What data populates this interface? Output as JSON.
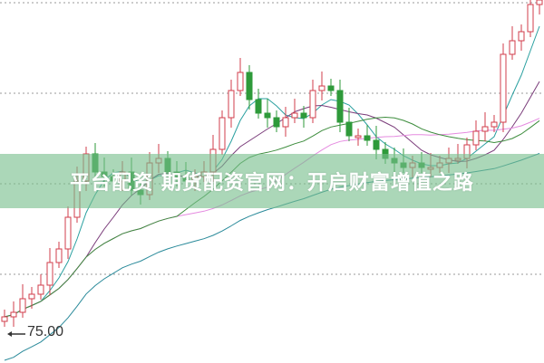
{
  "banner": {
    "text": "平台配资 期货配资官网：开启财富增值之路"
  },
  "chart_data": {
    "type": "candlestick",
    "annotation": "75.00",
    "grid": true,
    "up_color": "#d23c4b",
    "down_color": "#2e9a3a",
    "ma_colors": [
      "#2aa0a0",
      "#7a3c7a",
      "#e58be0",
      "#3c8c3c",
      "#2a8a9a"
    ],
    "closes": [
      76.8,
      77.3,
      78.8,
      79.3,
      80.3,
      82.8,
      84.3,
      87.8,
      91.8,
      94.8,
      92.8,
      92.3,
      91.8,
      92.8,
      90.8,
      90.3,
      93.8,
      94.3,
      92.8,
      92.3,
      91.8,
      92.3,
      92.8,
      95.3,
      98.8,
      101.8,
      103.8,
      100.8,
      99.3,
      98.8,
      97.8,
      98.8,
      99.3,
      98.8,
      101.8,
      102.3,
      101.8,
      98.3,
      96.8,
      96.8,
      96.3,
      95.3,
      94.3,
      93.8,
      93.3,
      93.8,
      93.3,
      93.3,
      93.8,
      94.3,
      94.3,
      95.8,
      97.3,
      97.8,
      98.3,
      105.8,
      107.3,
      108.3,
      111.3,
      111.8
    ]
  }
}
